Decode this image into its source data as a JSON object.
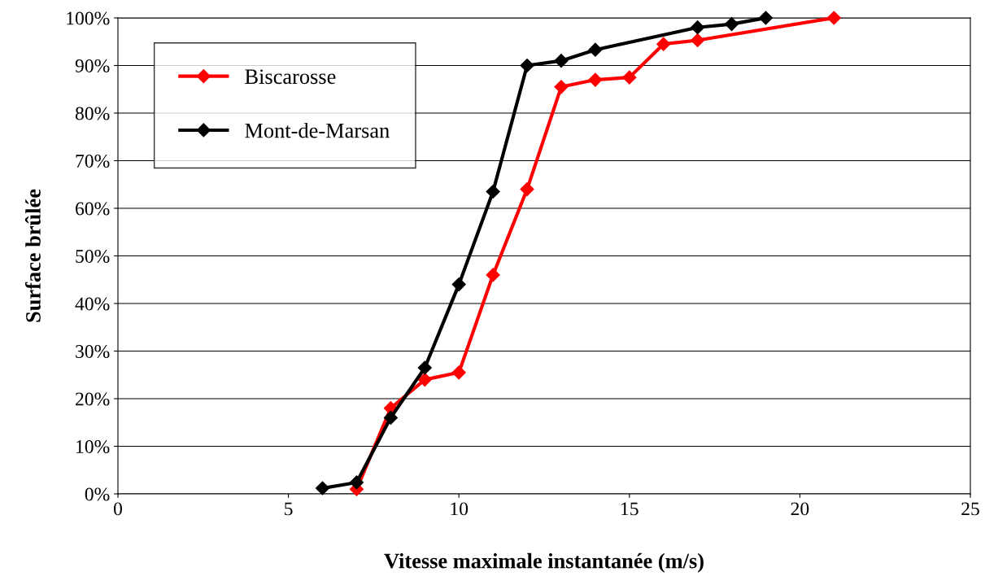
{
  "chart_data": {
    "type": "line",
    "xlabel": "Vitesse maximale instantanée (m/s)",
    "ylabel": "Surface brûlée",
    "series": [
      {
        "name": "Biscarosse",
        "color": "#ff0000",
        "x": [
          7,
          8,
          9,
          10,
          11,
          12,
          13,
          14,
          15,
          16,
          17,
          21
        ],
        "values": [
          1,
          18,
          24,
          25.5,
          46,
          64,
          85.5,
          87,
          87.5,
          94.5,
          95.3,
          100
        ]
      },
      {
        "name": "Mont-de-Marsan",
        "color": "#000000",
        "x": [
          6,
          7,
          8,
          9,
          10,
          11,
          12,
          13,
          14,
          17,
          18,
          19
        ],
        "values": [
          1.2,
          2.4,
          16,
          26.5,
          44,
          63.5,
          90,
          91,
          93.3,
          98,
          98.7,
          100
        ]
      }
    ],
    "xlim": [
      0,
      25
    ],
    "xticks": [
      0,
      5,
      10,
      15,
      20,
      25
    ],
    "ylim": [
      0,
      100
    ],
    "yticks": [
      {
        "value": 0,
        "label": "0%"
      },
      {
        "value": 10,
        "label": "10%"
      },
      {
        "value": 20,
        "label": "20%"
      },
      {
        "value": 30,
        "label": "30%"
      },
      {
        "value": 40,
        "label": "40%"
      },
      {
        "value": 50,
        "label": "50%"
      },
      {
        "value": 60,
        "label": "60%"
      },
      {
        "value": 70,
        "label": "70%"
      },
      {
        "value": 80,
        "label": "80%"
      },
      {
        "value": 90,
        "label": "90%"
      },
      {
        "value": 100,
        "label": "100%"
      }
    ],
    "grid": "y",
    "legend": "top left",
    "marker": "diamond",
    "line_style": "solid"
  }
}
